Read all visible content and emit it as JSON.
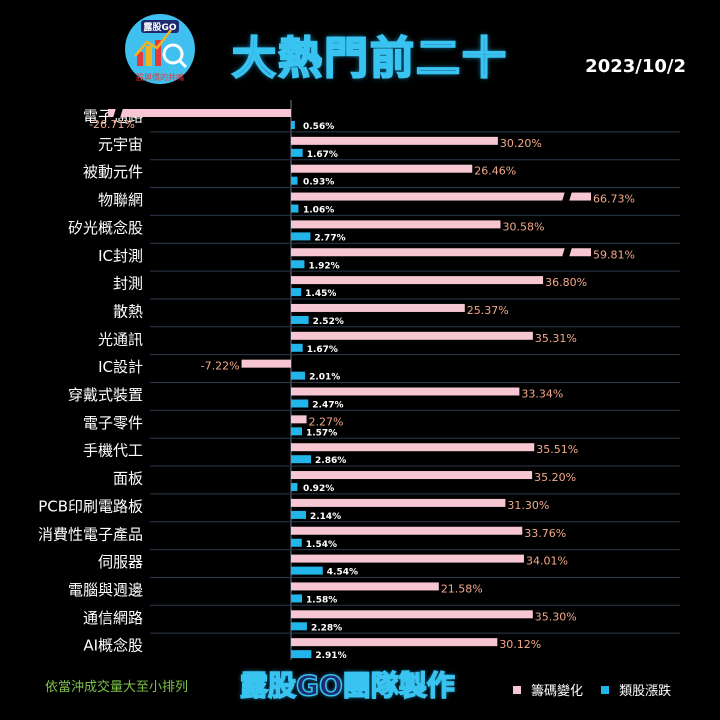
{
  "header": {
    "title": "大熱門前二十",
    "date": "2023/10/2",
    "logo_text_top": "露股GO",
    "logo_text_bottom": "股與價的共鳴"
  },
  "footer": {
    "note": "依當沖成交量大至小排列",
    "credit": "露股GO團隊製作"
  },
  "colors": {
    "chip": "#f6c6d2",
    "price": "#22b5ea",
    "chip_text": "#f2a88a",
    "divider": "#6b7a8f"
  },
  "chart_data": {
    "type": "bar",
    "orientation": "horizontal",
    "categories": [
      "電子通路",
      "元宇宙",
      "被動元件",
      "物聯網",
      "矽光概念股",
      "IC封測",
      "封測",
      "散熱",
      "光通訊",
      "IC設計",
      "穿戴式裝置",
      "電子零件",
      "手機代工",
      "面板",
      "PCB印刷電路板",
      "消費性電子產品",
      "伺服器",
      "電腦與週邊",
      "通信網路",
      "AI概念股"
    ],
    "series": [
      {
        "name": "籌碼變化",
        "values": [
          -26.71,
          30.2,
          26.46,
          66.73,
          30.58,
          59.81,
          36.8,
          25.37,
          35.31,
          -7.22,
          33.34,
          2.27,
          35.51,
          35.2,
          31.3,
          33.76,
          34.01,
          21.58,
          35.3,
          30.12
        ],
        "labels": [
          "-26.71%",
          "30.20%",
          "26.46%",
          "66.73%",
          "30.58%",
          "59.81%",
          "36.80%",
          "25.37%",
          "35.31%",
          "-7.22%",
          "33.34%",
          "2.27%",
          "35.51%",
          "35.20%",
          "31.30%",
          "33.76%",
          "34.01%",
          "21.58%",
          "35.30%",
          "30.12%"
        ]
      },
      {
        "name": "類股漲跌",
        "values": [
          0.56,
          1.67,
          0.93,
          1.06,
          2.77,
          1.92,
          1.45,
          2.52,
          1.67,
          2.01,
          2.47,
          1.57,
          2.86,
          0.92,
          2.14,
          1.54,
          4.54,
          1.58,
          2.28,
          2.91
        ],
        "labels": [
          "0.56%",
          "1.67%",
          "0.93%",
          "1.06%",
          "2.77%",
          "1.92%",
          "1.45%",
          "2.52%",
          "1.67%",
          "2.01%",
          "2.47%",
          "1.57%",
          "2.86%",
          "0.92%",
          "2.14%",
          "1.54%",
          "4.54%",
          "1.58%",
          "2.28%",
          "2.91%"
        ]
      }
    ],
    "axis_breaks": {
      "電子通路": true,
      "物聯網": true,
      "IC封測": true
    },
    "legend_position": "bottom-right",
    "grid": false
  }
}
